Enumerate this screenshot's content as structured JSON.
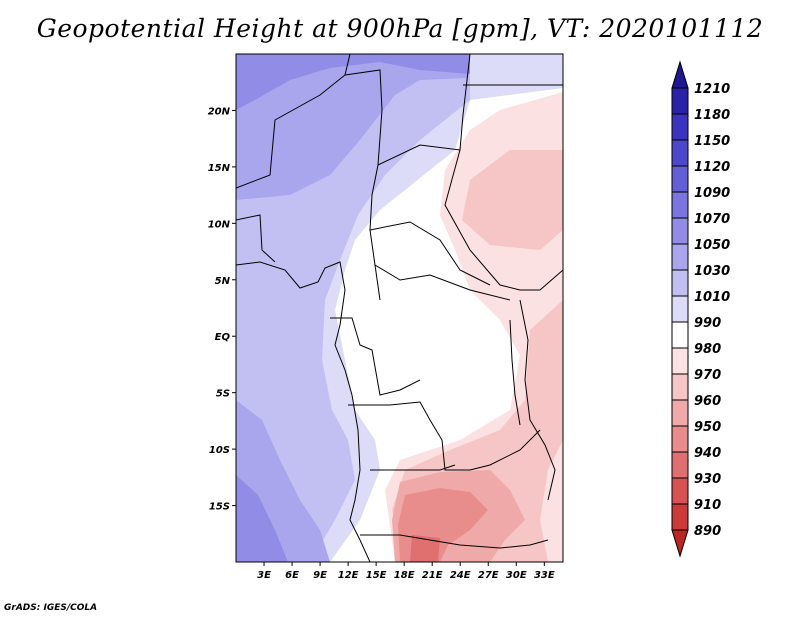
{
  "title": "Geopotential Height at 900hPa [gpm], VT: 2020101112",
  "footer": "GrADS: IGES/COLA",
  "map": {
    "lon_range": [
      0,
      35
    ],
    "lat_range": [
      -20,
      25
    ],
    "lat_ticks": [
      "20N",
      "15N",
      "10N",
      "5N",
      "EQ",
      "5S",
      "10S",
      "15S"
    ],
    "lon_ticks": [
      "3E",
      "6E",
      "9E",
      "12E",
      "15E",
      "18E",
      "21E",
      "24E",
      "27E",
      "30E",
      "33E"
    ]
  },
  "colorbar": {
    "labels": [
      "1210",
      "1180",
      "1150",
      "1120",
      "1090",
      "1070",
      "1050",
      "1030",
      "1010",
      "990",
      "980",
      "970",
      "960",
      "950",
      "940",
      "930",
      "910",
      "890"
    ],
    "colors": [
      "#1f1791",
      "#2a22a8",
      "#3b33bf",
      "#4d47cc",
      "#635ed6",
      "#7a75df",
      "#918de6",
      "#a9a6ee",
      "#c2c0f3",
      "#dcdbf8",
      "#ffffff",
      "#fbe1e1",
      "#f6c5c5",
      "#f0a9a9",
      "#e98c8c",
      "#e06f6f",
      "#d65252",
      "#cb3939",
      "#bd2424"
    ]
  }
}
